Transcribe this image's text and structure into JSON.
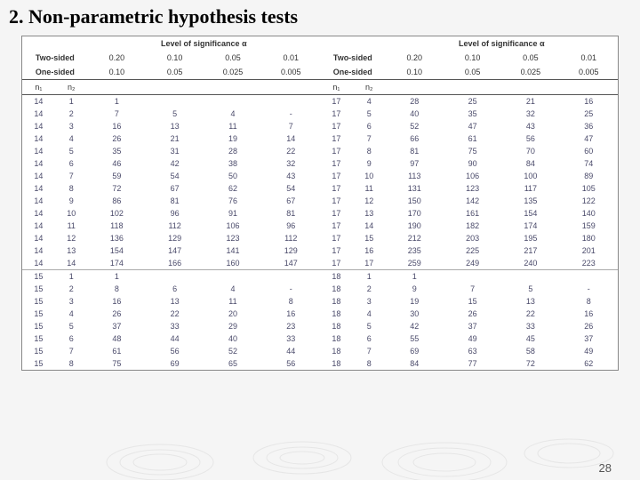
{
  "title": "2. Non-parametric hypothesis tests",
  "page_number": "28",
  "header": {
    "level_label": "Level of significance",
    "alpha": "α",
    "two_sided": "Two-sided",
    "one_sided": "One-sided",
    "n1": "n₁",
    "n2": "n₂",
    "two_sided_vals": [
      "0.20",
      "0.10",
      "0.05",
      "0.01"
    ],
    "one_sided_vals": [
      "0.10",
      "0.05",
      "0.025",
      "0.005"
    ]
  },
  "block1_left": [
    [
      "14",
      "1",
      "1",
      "",
      "",
      ""
    ],
    [
      "14",
      "2",
      "7",
      "5",
      "4",
      "-"
    ],
    [
      "14",
      "3",
      "16",
      "13",
      "11",
      "7"
    ],
    [
      "14",
      "4",
      "26",
      "21",
      "19",
      "14"
    ],
    [
      "14",
      "5",
      "35",
      "31",
      "28",
      "22"
    ],
    [
      "14",
      "6",
      "46",
      "42",
      "38",
      "32"
    ],
    [
      "14",
      "7",
      "59",
      "54",
      "50",
      "43"
    ],
    [
      "14",
      "8",
      "72",
      "67",
      "62",
      "54"
    ],
    [
      "14",
      "9",
      "86",
      "81",
      "76",
      "67"
    ],
    [
      "14",
      "10",
      "102",
      "96",
      "91",
      "81"
    ],
    [
      "14",
      "11",
      "118",
      "112",
      "106",
      "96"
    ],
    [
      "14",
      "12",
      "136",
      "129",
      "123",
      "112"
    ],
    [
      "14",
      "13",
      "154",
      "147",
      "141",
      "129"
    ],
    [
      "14",
      "14",
      "174",
      "166",
      "160",
      "147"
    ]
  ],
  "block1_right": [
    [
      "17",
      "4",
      "28",
      "25",
      "21",
      "16"
    ],
    [
      "17",
      "5",
      "40",
      "35",
      "32",
      "25"
    ],
    [
      "17",
      "6",
      "52",
      "47",
      "43",
      "36"
    ],
    [
      "17",
      "7",
      "66",
      "61",
      "56",
      "47"
    ],
    [
      "17",
      "8",
      "81",
      "75",
      "70",
      "60"
    ],
    [
      "17",
      "9",
      "97",
      "90",
      "84",
      "74"
    ],
    [
      "17",
      "10",
      "113",
      "106",
      "100",
      "89"
    ],
    [
      "17",
      "11",
      "131",
      "123",
      "117",
      "105"
    ],
    [
      "17",
      "12",
      "150",
      "142",
      "135",
      "122"
    ],
    [
      "17",
      "13",
      "170",
      "161",
      "154",
      "140"
    ],
    [
      "17",
      "14",
      "190",
      "182",
      "174",
      "159"
    ],
    [
      "17",
      "15",
      "212",
      "203",
      "195",
      "180"
    ],
    [
      "17",
      "16",
      "235",
      "225",
      "217",
      "201"
    ],
    [
      "17",
      "17",
      "259",
      "249",
      "240",
      "223"
    ]
  ],
  "block2_left": [
    [
      "15",
      "1",
      "1",
      "",
      "",
      ""
    ],
    [
      "15",
      "2",
      "8",
      "6",
      "4",
      "-"
    ],
    [
      "15",
      "3",
      "16",
      "13",
      "11",
      "8"
    ],
    [
      "15",
      "4",
      "26",
      "22",
      "20",
      "16"
    ],
    [
      "15",
      "5",
      "37",
      "33",
      "29",
      "23"
    ],
    [
      "15",
      "6",
      "48",
      "44",
      "40",
      "33"
    ],
    [
      "15",
      "7",
      "61",
      "56",
      "52",
      "44"
    ],
    [
      "15",
      "8",
      "75",
      "69",
      "65",
      "56"
    ]
  ],
  "block2_right": [
    [
      "18",
      "1",
      "1",
      "",
      "",
      ""
    ],
    [
      "18",
      "2",
      "9",
      "7",
      "5",
      "-"
    ],
    [
      "18",
      "3",
      "19",
      "15",
      "13",
      "8"
    ],
    [
      "18",
      "4",
      "30",
      "26",
      "22",
      "16"
    ],
    [
      "18",
      "5",
      "42",
      "37",
      "33",
      "26"
    ],
    [
      "18",
      "6",
      "55",
      "49",
      "45",
      "37"
    ],
    [
      "18",
      "7",
      "69",
      "63",
      "58",
      "49"
    ],
    [
      "18",
      "8",
      "84",
      "77",
      "72",
      "62"
    ]
  ]
}
